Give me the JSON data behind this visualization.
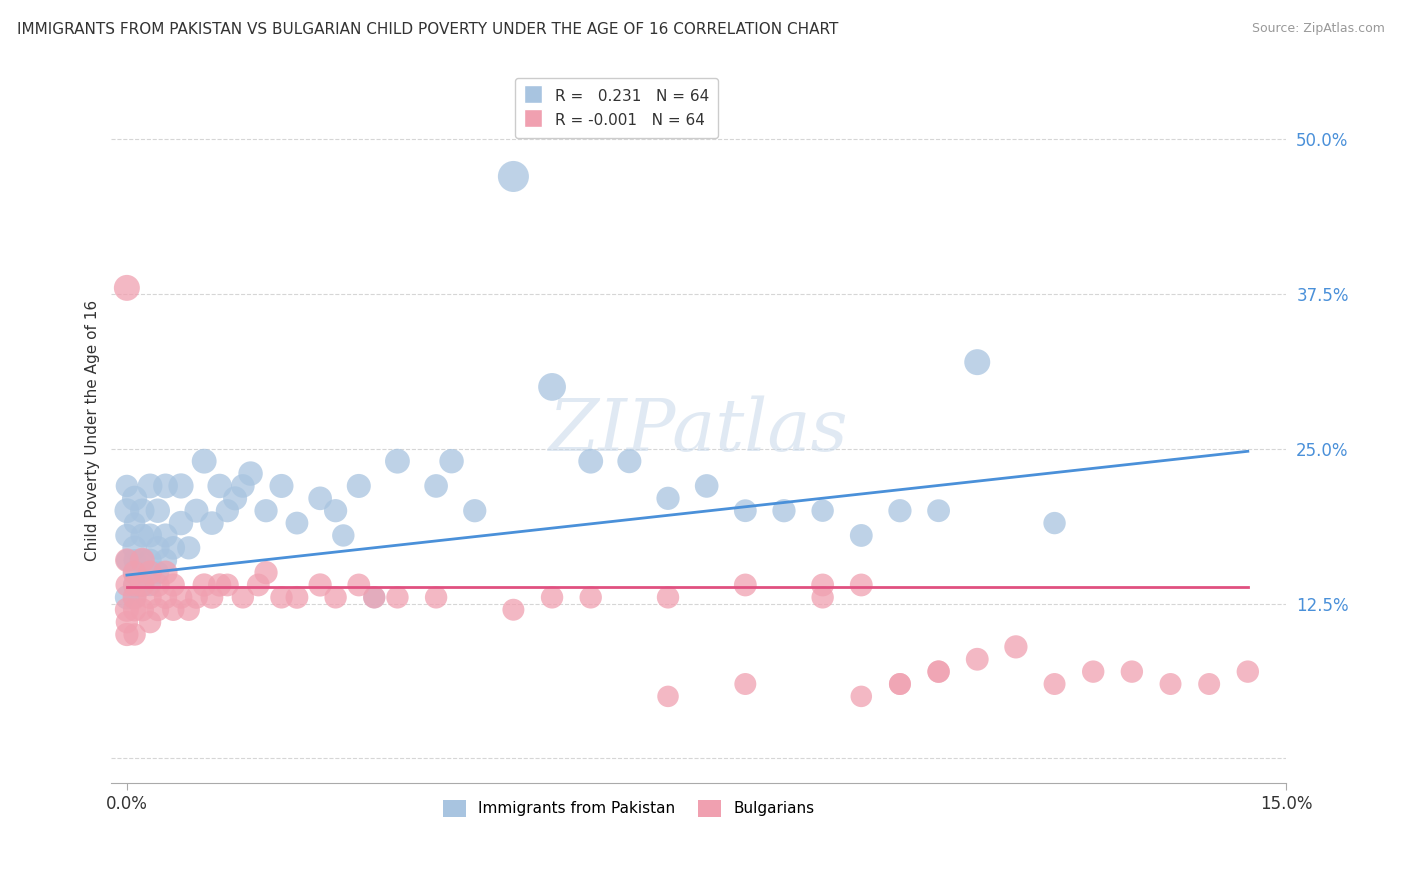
{
  "title": "IMMIGRANTS FROM PAKISTAN VS BULGARIAN CHILD POVERTY UNDER THE AGE OF 16 CORRELATION CHART",
  "source": "Source: ZipAtlas.com",
  "ylabel": "Child Poverty Under the Age of 16",
  "xlim": [
    0.0,
    0.15
  ],
  "ylim": [
    -0.02,
    0.55
  ],
  "yticks": [
    0.0,
    0.125,
    0.25,
    0.375,
    0.5
  ],
  "ytick_labels": [
    "",
    "12.5%",
    "25.0%",
    "37.5%",
    "50.0%"
  ],
  "xticks": [
    0.0,
    0.15
  ],
  "xtick_labels": [
    "0.0%",
    "15.0%"
  ],
  "grid_color": "#cccccc",
  "background_color": "#ffffff",
  "series1_color": "#a8c4e0",
  "series2_color": "#f0a0b0",
  "line1_color": "#4a90d9",
  "line2_color": "#e05080",
  "watermark": "ZIPatlas",
  "R1": 0.231,
  "R2": -0.001,
  "N1": 64,
  "N2": 64,
  "legend_labels": [
    "Immigrants from Pakistan",
    "Bulgarians"
  ],
  "series1_x": [
    0.0,
    0.0,
    0.0,
    0.0,
    0.0,
    0.001,
    0.001,
    0.001,
    0.001,
    0.001,
    0.001,
    0.001,
    0.002,
    0.002,
    0.002,
    0.002,
    0.003,
    0.003,
    0.003,
    0.003,
    0.004,
    0.004,
    0.004,
    0.005,
    0.005,
    0.005,
    0.006,
    0.007,
    0.007,
    0.008,
    0.009,
    0.01,
    0.011,
    0.012,
    0.013,
    0.014,
    0.015,
    0.016,
    0.018,
    0.02,
    0.022,
    0.025,
    0.027,
    0.028,
    0.03,
    0.032,
    0.035,
    0.04,
    0.042,
    0.045,
    0.05,
    0.055,
    0.06,
    0.065,
    0.07,
    0.075,
    0.08,
    0.085,
    0.09,
    0.095,
    0.1,
    0.105,
    0.11,
    0.12
  ],
  "series1_y": [
    0.13,
    0.16,
    0.18,
    0.2,
    0.22,
    0.13,
    0.15,
    0.17,
    0.19,
    0.21,
    0.14,
    0.16,
    0.14,
    0.16,
    0.18,
    0.2,
    0.14,
    0.16,
    0.18,
    0.22,
    0.15,
    0.17,
    0.2,
    0.16,
    0.18,
    0.22,
    0.17,
    0.19,
    0.22,
    0.17,
    0.2,
    0.24,
    0.19,
    0.22,
    0.2,
    0.21,
    0.22,
    0.23,
    0.2,
    0.22,
    0.19,
    0.21,
    0.2,
    0.18,
    0.22,
    0.13,
    0.24,
    0.22,
    0.24,
    0.2,
    0.47,
    0.3,
    0.24,
    0.24,
    0.21,
    0.22,
    0.2,
    0.2,
    0.2,
    0.18,
    0.2,
    0.2,
    0.32,
    0.19
  ],
  "series2_x": [
    0.0,
    0.0,
    0.0,
    0.0,
    0.0,
    0.0,
    0.001,
    0.001,
    0.001,
    0.001,
    0.001,
    0.002,
    0.002,
    0.002,
    0.003,
    0.003,
    0.003,
    0.004,
    0.004,
    0.005,
    0.005,
    0.006,
    0.006,
    0.007,
    0.008,
    0.009,
    0.01,
    0.011,
    0.012,
    0.013,
    0.015,
    0.017,
    0.018,
    0.02,
    0.022,
    0.025,
    0.027,
    0.03,
    0.032,
    0.035,
    0.04,
    0.05,
    0.055,
    0.06,
    0.07,
    0.08,
    0.09,
    0.095,
    0.1,
    0.105,
    0.11,
    0.115,
    0.12,
    0.125,
    0.13,
    0.135,
    0.14,
    0.145,
    0.07,
    0.08,
    0.09,
    0.095,
    0.1,
    0.105
  ],
  "series2_y": [
    0.1,
    0.11,
    0.12,
    0.14,
    0.16,
    0.38,
    0.1,
    0.12,
    0.13,
    0.14,
    0.15,
    0.12,
    0.14,
    0.16,
    0.11,
    0.13,
    0.15,
    0.12,
    0.14,
    0.13,
    0.15,
    0.12,
    0.14,
    0.13,
    0.12,
    0.13,
    0.14,
    0.13,
    0.14,
    0.14,
    0.13,
    0.14,
    0.15,
    0.13,
    0.13,
    0.14,
    0.13,
    0.14,
    0.13,
    0.13,
    0.13,
    0.12,
    0.13,
    0.13,
    0.13,
    0.14,
    0.13,
    0.05,
    0.06,
    0.07,
    0.08,
    0.09,
    0.06,
    0.07,
    0.07,
    0.06,
    0.06,
    0.07,
    0.05,
    0.06,
    0.14,
    0.14,
    0.06,
    0.07
  ],
  "series1_sizes": [
    300,
    250,
    280,
    320,
    260,
    270,
    290,
    310,
    240,
    330,
    280,
    260,
    300,
    270,
    290,
    310,
    260,
    280,
    300,
    320,
    270,
    290,
    310,
    280,
    300,
    320,
    290,
    310,
    330,
    280,
    300,
    320,
    290,
    310,
    280,
    300,
    290,
    310,
    280,
    300,
    270,
    290,
    280,
    260,
    300,
    250,
    320,
    290,
    310,
    280,
    500,
    400,
    320,
    300,
    280,
    290,
    270,
    280,
    260,
    270,
    280,
    270,
    350,
    260
  ],
  "series2_sizes": [
    280,
    260,
    300,
    270,
    290,
    350,
    260,
    280,
    300,
    270,
    290,
    280,
    300,
    320,
    260,
    280,
    300,
    270,
    290,
    280,
    300,
    260,
    280,
    270,
    260,
    270,
    280,
    270,
    280,
    270,
    260,
    270,
    280,
    260,
    270,
    280,
    260,
    270,
    260,
    260,
    260,
    250,
    260,
    260,
    260,
    270,
    260,
    240,
    250,
    260,
    270,
    280,
    250,
    260,
    260,
    250,
    250,
    260,
    240,
    250,
    270,
    270,
    250,
    260
  ],
  "line1_x0": 0.0,
  "line1_x1": 0.145,
  "line1_y0": 0.148,
  "line1_y1": 0.248,
  "line2_x0": 0.0,
  "line2_x1": 0.145,
  "line2_y0": 0.138,
  "line2_y1": 0.138
}
